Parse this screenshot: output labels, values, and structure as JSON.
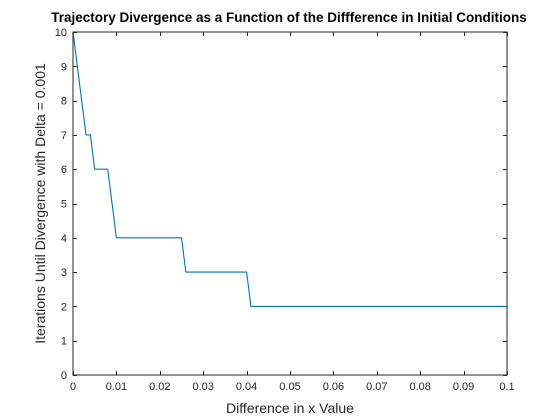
{
  "chart_data": {
    "type": "line",
    "title": "Trajectory Divergence  as a Function of the Diffference in Initial Conditions",
    "xlabel": "Difference in x Value",
    "ylabel": "Iterations Until Divergence with Delta = 0.001",
    "xlim": [
      0,
      0.1
    ],
    "ylim": [
      0,
      10
    ],
    "xticks": [
      0,
      0.01,
      0.02,
      0.03,
      0.04,
      0.05,
      0.06,
      0.07,
      0.08,
      0.09,
      0.1
    ],
    "xtick_labels": [
      "0",
      "0.01",
      "0.02",
      "0.03",
      "0.04",
      "0.05",
      "0.06",
      "0.07",
      "0.08",
      "0.09",
      "0.1"
    ],
    "yticks": [
      0,
      1,
      2,
      3,
      4,
      5,
      6,
      7,
      8,
      9,
      10
    ],
    "ytick_labels": [
      "0",
      "1",
      "2",
      "3",
      "4",
      "5",
      "6",
      "7",
      "8",
      "9",
      "10"
    ],
    "grid": false,
    "box": true,
    "series": [
      {
        "color": "#0072bd",
        "x": [
          0,
          0.001,
          0.002,
          0.003,
          0.004,
          0.005,
          0.006,
          0.007,
          0.008,
          0.009,
          0.01,
          0.025,
          0.026,
          0.04,
          0.041,
          0.1
        ],
        "y": [
          10,
          9,
          8,
          7,
          7,
          6,
          6,
          6,
          6,
          5,
          4,
          4,
          3,
          3,
          2,
          2
        ]
      }
    ]
  }
}
